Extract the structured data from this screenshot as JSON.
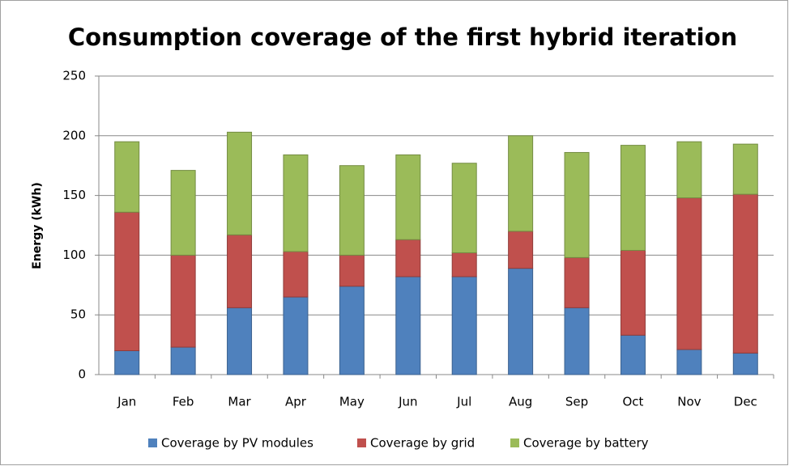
{
  "chart_data": {
    "type": "stacked_bar",
    "title": "Consumption coverage of the first hybrid iteration",
    "y_label": "Energy (kWh)",
    "categories": [
      "Jan",
      "Feb",
      "Mar",
      "Apr",
      "May",
      "Jun",
      "Jul",
      "Aug",
      "Sep",
      "Oct",
      "Nov",
      "Dec"
    ],
    "series": [
      {
        "name": "Coverage by PV modules",
        "color": "#4f81bd",
        "values": [
          20,
          23,
          56,
          65,
          74,
          82,
          82,
          89,
          56,
          33,
          21,
          18
        ]
      },
      {
        "name": "Coverage by grid",
        "color": "#c0504d",
        "values": [
          116,
          77,
          61,
          38,
          26,
          31,
          20,
          31,
          42,
          71,
          127,
          133
        ]
      },
      {
        "name": "Coverage by battery",
        "color": "#9bbb59",
        "values": [
          59,
          71,
          86,
          81,
          75,
          71,
          75,
          80,
          88,
          88,
          47,
          42
        ]
      }
    ],
    "ylim": [
      0,
      250
    ],
    "yticks": [
      0,
      50,
      100,
      150,
      200,
      250
    ],
    "grid": true,
    "legend": "bottom"
  }
}
